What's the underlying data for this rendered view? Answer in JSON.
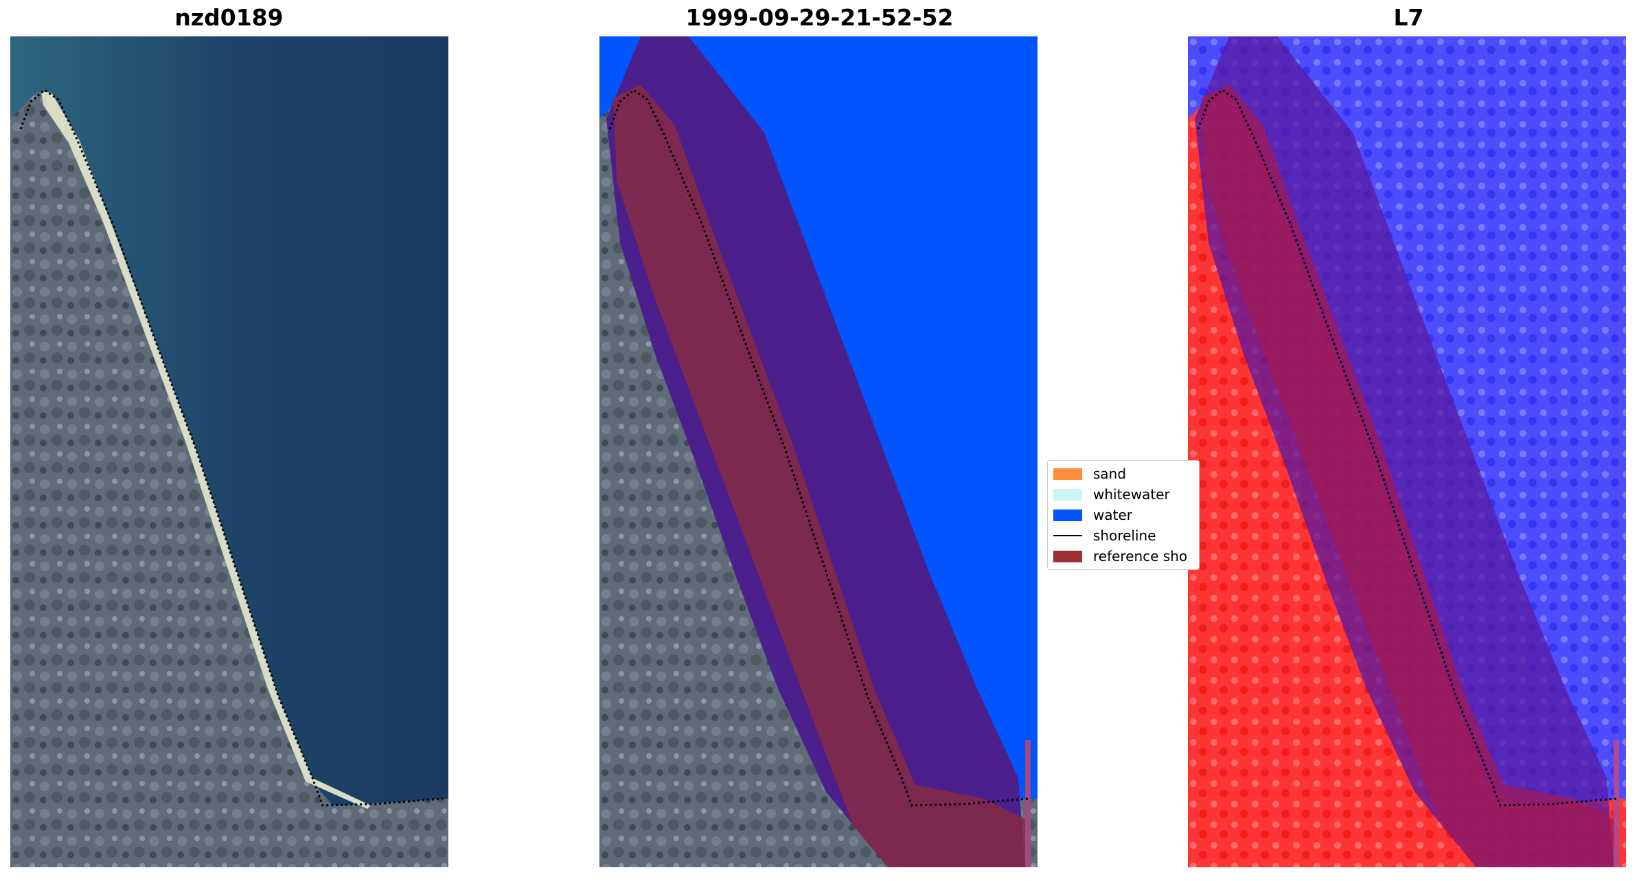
{
  "panels": [
    {
      "title": "nzd0189"
    },
    {
      "title": "1999-09-29-21-52-52"
    },
    {
      "title": "L7"
    }
  ],
  "legend": {
    "items": [
      {
        "label": "sand",
        "color": "#ff8c3a"
      },
      {
        "label": "whitewater",
        "color": "#ccf5f5"
      },
      {
        "label": "water",
        "color": "#0055ff"
      },
      {
        "label": "shoreline",
        "color": "#000000"
      },
      {
        "label": "reference sho",
        "color": "#9b2f35"
      }
    ]
  },
  "colors": {
    "sea": "#1c3e66",
    "land": "#5d6a78",
    "water_mask": "#0055ff",
    "buffer": "#4b1f8c",
    "reference_shoreline": "#8a2a40",
    "land_index": "#ff2a2a",
    "water_index": "#4d4dff"
  }
}
